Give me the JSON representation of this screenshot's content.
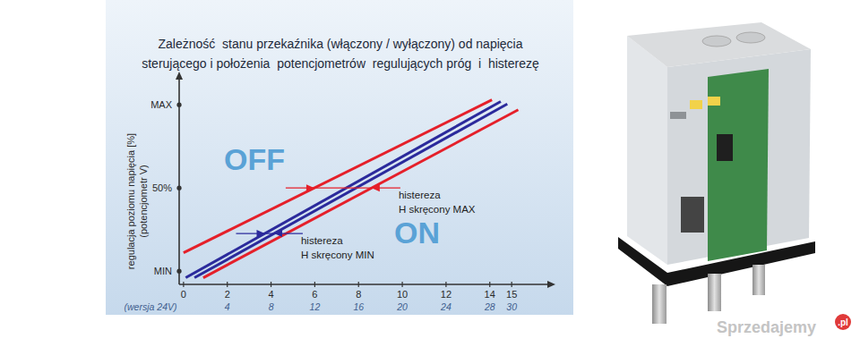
{
  "chart_data": {
    "type": "line",
    "title": [
      "Zależność  stanu przekaźnika (włączony / wyłączony) od napięcia",
      "sterującego i położenia  potencjometrów  regulujących próg  i  histerezę"
    ],
    "ylabel": [
      "regulacja poziomu napięcia [%]",
      "(potencjometr V)"
    ],
    "x2label": "(wersja 24V)",
    "xlim": [
      -0.2,
      17
    ],
    "xticks": [
      0,
      2,
      4,
      6,
      8,
      10,
      12,
      14,
      15
    ],
    "x2lim": [
      -0.4,
      34
    ],
    "x2ticks": [
      4,
      8,
      12,
      16,
      20,
      24,
      28,
      30
    ],
    "ylim": [
      -8,
      120
    ],
    "yticks": [
      {
        "value": 0,
        "label": "MIN"
      },
      {
        "value": 50,
        "label": "50%"
      },
      {
        "value": 100,
        "label": "MAX"
      }
    ],
    "grid": false,
    "series": [
      {
        "color": "#e5202a",
        "x": [
          0,
          14.1
        ],
        "values": [
          11,
          103
        ]
      },
      {
        "color": "#2b2a9c",
        "x": [
          0.1,
          14.5
        ],
        "values": [
          -4,
          102
        ]
      },
      {
        "color": "#2b2a9c",
        "x": [
          0.5,
          14.8
        ],
        "values": [
          -4,
          100.5
        ]
      },
      {
        "color": "#e5202a",
        "x": [
          0.9,
          15.3
        ],
        "values": [
          -4,
          97
        ]
      }
    ],
    "regions": [
      "OFF",
      "ON"
    ],
    "annotations": [
      {
        "text": [
          "histereza",
          "H skręcony MAX"
        ],
        "y": 50,
        "x": [
          5.98,
          8.6
        ]
      },
      {
        "text": [
          "histereza",
          "H skręcony MIN"
        ],
        "y": 22.6,
        "x": [
          3.71,
          4.14
        ]
      }
    ]
  },
  "watermark": "Sprzedajemy",
  "watermark_suffix": ".pl"
}
